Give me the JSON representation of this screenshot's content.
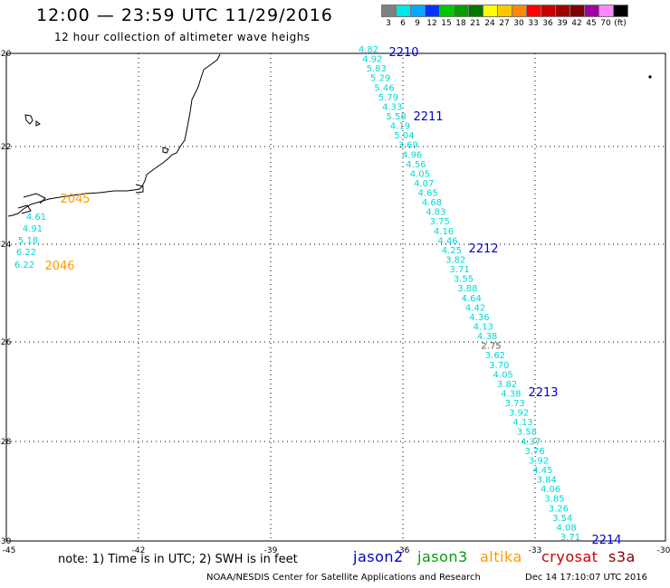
{
  "header": {
    "title": "12:00 — 23:59 UTC 11/29/2016",
    "subtitle": "12 hour collection of altimeter wave heighs"
  },
  "scale": {
    "unit": "(ft)",
    "colors": [
      "#808080",
      "#00e5e5",
      "#00aaff",
      "#0033ff",
      "#00c800",
      "#00a000",
      "#007800",
      "#ffff00",
      "#ffc800",
      "#ff8800",
      "#ff0000",
      "#c80000",
      "#a00000",
      "#800000",
      "#a000a0",
      "#ff88ff",
      "#000000"
    ],
    "labels": [
      "3",
      "6",
      "9",
      "12",
      "15",
      "18",
      "21",
      "24",
      "27",
      "30",
      "33",
      "36",
      "39",
      "42",
      "45",
      "70"
    ]
  },
  "map": {
    "lat_labels": [
      "-20",
      "-22",
      "-24",
      "-26",
      "-28",
      "-30"
    ],
    "lon_labels": [
      "-45",
      "-42",
      "-39",
      "-36",
      "-33",
      "-30"
    ],
    "track_labels": [
      {
        "text": "2210",
        "color": "#0000cc"
      },
      {
        "text": "2211",
        "color": "#0000cc"
      },
      {
        "text": "2212",
        "color": "#0000cc"
      },
      {
        "text": "2213",
        "color": "#0000cc"
      },
      {
        "text": "2214",
        "color": "#0000cc"
      },
      {
        "text": "2045",
        "color": "#ff9900"
      },
      {
        "text": "2046",
        "color": "#ff9900"
      }
    ],
    "main_track_values": [
      "4.82",
      "4.92",
      "5.83",
      "5.29",
      "5.46",
      "5.79",
      "4.33",
      "5.58",
      "4.19",
      "5.04",
      "3.69",
      "4.96",
      "4.56",
      "4.05",
      "4.07",
      "4.65",
      "4.68",
      "4.83",
      "3.75",
      "4.16",
      "4.46",
      "4.25",
      "3.82",
      "3.71",
      "3.55",
      "3.88",
      "4.64",
      "4.42",
      "4.36",
      "4.13",
      "4.38",
      "2.75",
      "3.62",
      "3.70",
      "4.05",
      "3.82",
      "4.38",
      "3.73",
      "3.92",
      "4.13",
      "3.58",
      "4.37",
      "3.76",
      "3.92",
      "4.45",
      "3.84",
      "4.06",
      "3.85",
      "3.26",
      "3.54",
      "4.08",
      "3.71"
    ],
    "west_track_values": [
      "4.61",
      "4.91",
      "5.18",
      "6.22",
      "6.22"
    ],
    "value_color": "#00d8d8",
    "outlier_color": "#555555"
  },
  "note": "note: 1) Time is in UTC; 2) SWH is in feet",
  "legend": [
    {
      "label": "jason2",
      "color": "#0000cc"
    },
    {
      "label": "jason3",
      "color": "#00a000"
    },
    {
      "label": "altika",
      "color": "#ff9900"
    },
    {
      "label": "cryosat",
      "color": "#cc0000"
    },
    {
      "label": "s3a",
      "color": "#880000"
    }
  ],
  "footer": {
    "credit": "NOAA/NESDIS Center for Satellite Applications and Research",
    "timestamp": "Dec 14 17:10:07 UTC 2016"
  }
}
